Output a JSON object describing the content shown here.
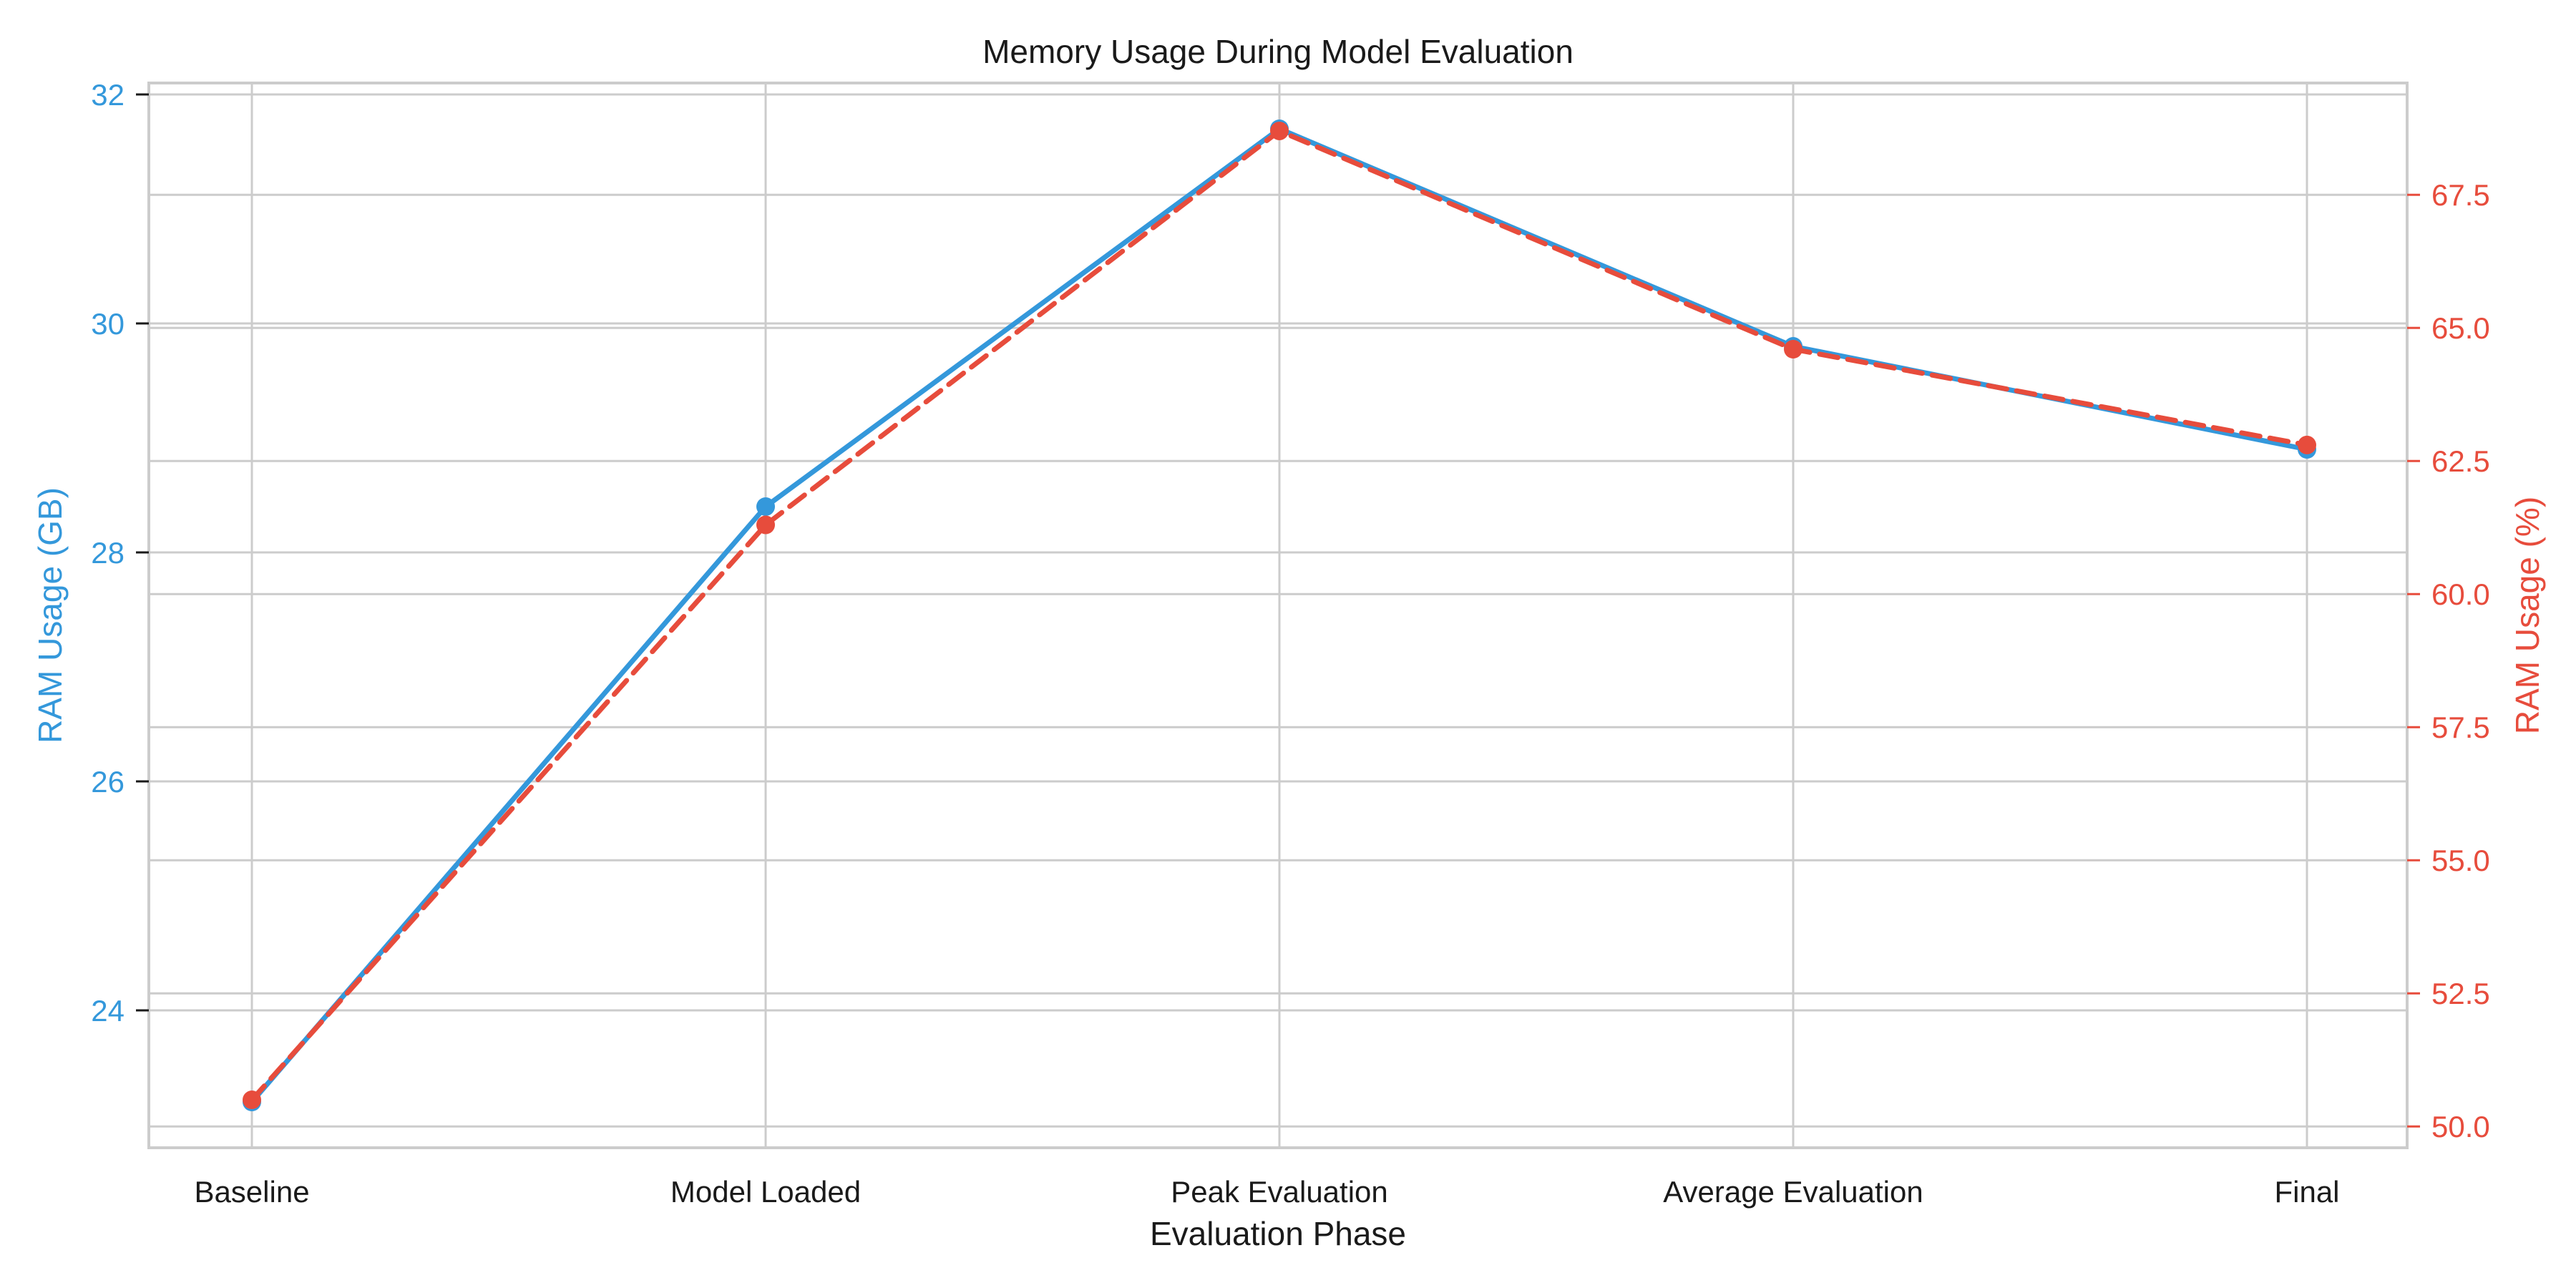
{
  "chart_data": {
    "type": "line",
    "title": "Memory Usage During Model Evaluation",
    "xlabel": "Evaluation Phase",
    "ylabel_left": "RAM Usage (GB)",
    "ylabel_right": "RAM Usage (%)",
    "categories": [
      "Baseline",
      "Model Loaded",
      "Peak Evaluation",
      "Average Evaluation",
      "Final"
    ],
    "grid": true,
    "left_axis": {
      "ylim": [
        22.8,
        32.1
      ],
      "ticks": [
        24,
        26,
        28,
        30,
        32
      ],
      "tick_labels": [
        "24",
        "26",
        "28",
        "30",
        "32"
      ]
    },
    "right_axis": {
      "ylim": [
        49.6,
        69.6
      ],
      "ticks": [
        50.0,
        52.5,
        55.0,
        57.5,
        60.0,
        62.5,
        65.0,
        67.5
      ],
      "tick_labels": [
        "50.0",
        "52.5",
        "55.0",
        "57.5",
        "60.0",
        "62.5",
        "65.0",
        "67.5"
      ]
    },
    "series": [
      {
        "name": "RAM Usage (GB)",
        "axis": "left",
        "style": "solid",
        "color": "#3498db",
        "values": [
          23.2,
          28.4,
          31.7,
          29.8,
          28.9
        ]
      },
      {
        "name": "RAM Usage (%)",
        "axis": "right",
        "style": "dashed",
        "color": "#e74c3c",
        "values": [
          50.5,
          61.3,
          68.7,
          64.6,
          62.8
        ]
      }
    ],
    "colors": {
      "left": "#3498db",
      "right": "#e74c3c",
      "grid": "#cccccc",
      "text": "#1a1a1a"
    }
  }
}
